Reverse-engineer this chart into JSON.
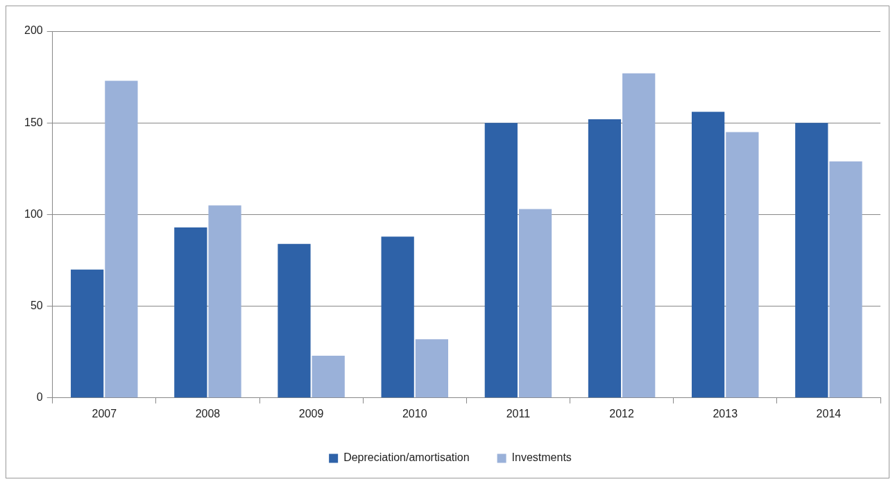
{
  "chart_data": {
    "type": "bar",
    "categories": [
      "2007",
      "2008",
      "2009",
      "2010",
      "2011",
      "2012",
      "2013",
      "2014"
    ],
    "series": [
      {
        "name": "Depreciation/amortisation",
        "color": "#2e62a8",
        "values": [
          70,
          93,
          84,
          88,
          150,
          152,
          156,
          150
        ]
      },
      {
        "name": "Investments",
        "color": "#9ab1d9",
        "values": [
          173,
          105,
          23,
          32,
          103,
          177,
          145,
          129
        ]
      }
    ],
    "ylim": [
      0,
      200
    ],
    "yticks": [
      0,
      50,
      100,
      150,
      200
    ],
    "grid": "y",
    "legend": "bottom"
  }
}
